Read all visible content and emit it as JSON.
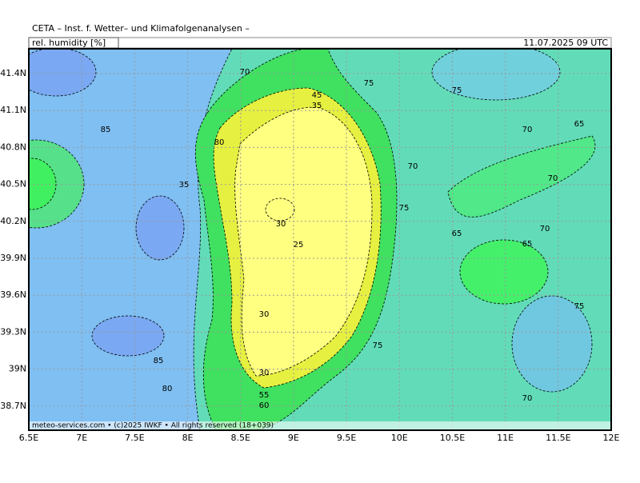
{
  "header": {
    "title": "CETA – Inst. f. Wetter– und Klimafolgenanalysen –",
    "parameter": "rel. humidity [%]",
    "valid_time": "11.07.2025 09 UTC"
  },
  "map": {
    "x_labels": [
      "6.5E",
      "7E",
      "7.5E",
      "8E",
      "8.5E",
      "9E",
      "9.5E",
      "10E",
      "10.5E",
      "11E",
      "11.5E",
      "12E"
    ],
    "y_labels": [
      "41.4N",
      "41.1N",
      "40.8N",
      "40.5N",
      "40.2N",
      "39.9N",
      "39.6N",
      "39.3N",
      "39N",
      "38.7N"
    ],
    "contour_labels": [
      "70",
      "75",
      "75",
      "85",
      "70",
      "65",
      "45",
      "35",
      "80",
      "70",
      "35",
      "70",
      "75",
      "30",
      "70",
      "65",
      "25",
      "65",
      "30",
      "75",
      "75",
      "85",
      "80",
      "30",
      "55",
      "60",
      "70"
    ],
    "footer": "meteo-services.com • (c)2025 IWKF • All rights reserved (18+039)"
  }
}
